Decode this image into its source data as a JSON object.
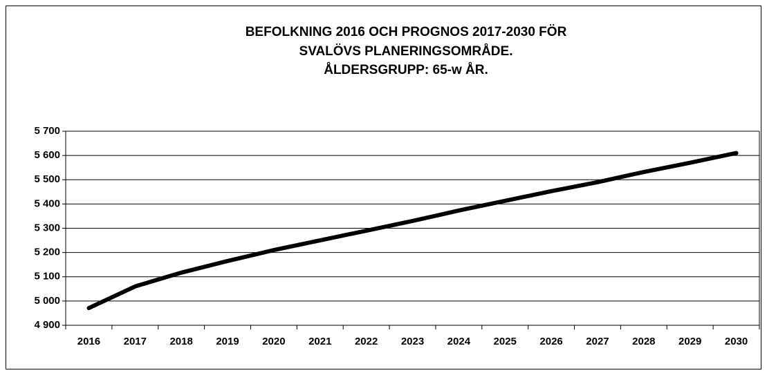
{
  "chart_data": {
    "type": "line",
    "title": [
      "BEFOLKNING 2016 OCH PROGNOS 2017-2030 FÖR",
      "SVALÖVS PLANERINGSOMRÅDE.",
      "ÅLDERSGRUPP: 65-w ÅR."
    ],
    "categories": [
      "2016",
      "2017",
      "2018",
      "2019",
      "2020",
      "2021",
      "2022",
      "2023",
      "2024",
      "2025",
      "2026",
      "2027",
      "2028",
      "2029",
      "2030"
    ],
    "values": [
      4971,
      5060,
      5117,
      5165,
      5210,
      5250,
      5290,
      5330,
      5373,
      5413,
      5453,
      5490,
      5532,
      5570,
      5610
    ],
    "color": "#000000",
    "ylim": [
      4900,
      5700
    ],
    "yticks": [
      {
        "value": 4900,
        "label": "4 900"
      },
      {
        "value": 5000,
        "label": "5 000"
      },
      {
        "value": 5100,
        "label": "5 100"
      },
      {
        "value": 5200,
        "label": "5 200"
      },
      {
        "value": 5300,
        "label": "5 300"
      },
      {
        "value": 5400,
        "label": "5 400"
      },
      {
        "value": 5500,
        "label": "5 500"
      },
      {
        "value": 5600,
        "label": "5 600"
      },
      {
        "value": 5700,
        "label": "5 700"
      }
    ],
    "grid": true
  }
}
